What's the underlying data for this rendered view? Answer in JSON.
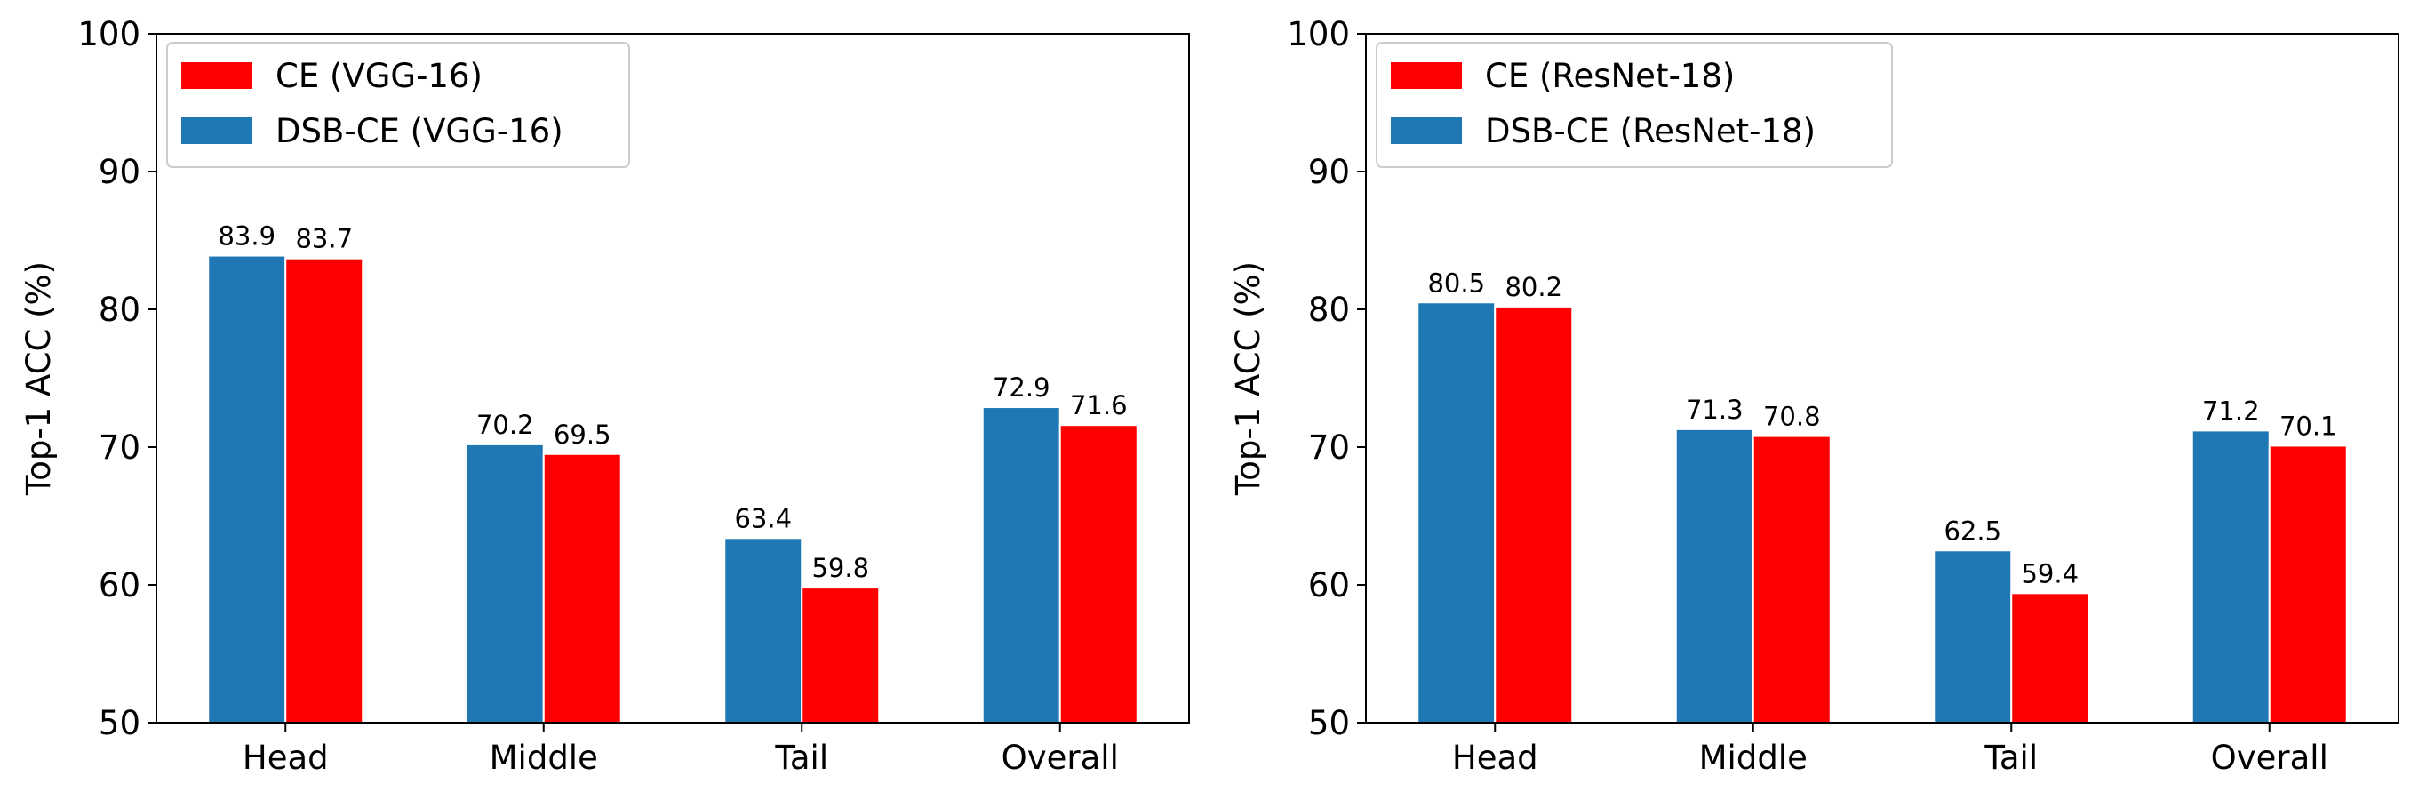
{
  "chart_data": [
    {
      "type": "bar",
      "categories": [
        "Head",
        "Middle",
        "Tail",
        "Overall"
      ],
      "ylabel": "Top-1 ACC (%)",
      "ylim": [
        50,
        100
      ],
      "yticks": [
        "50",
        "60",
        "70",
        "80",
        "90",
        "100"
      ],
      "grid": false,
      "legend_position": "top-left",
      "series": [
        {
          "name": "DSB-CE (VGG-16)",
          "color": "#1f77b4",
          "values": [
            83.9,
            70.2,
            63.4,
            72.9
          ],
          "labels": [
            "83.9",
            "70.2",
            "63.4",
            "72.9"
          ]
        },
        {
          "name": "CE (VGG-16)",
          "color": "#ff0000",
          "values": [
            83.7,
            69.5,
            59.8,
            71.6
          ],
          "labels": [
            "83.7",
            "69.5",
            "59.8",
            "71.6"
          ]
        }
      ],
      "legend_order": [
        1,
        0
      ]
    },
    {
      "type": "bar",
      "categories": [
        "Head",
        "Middle",
        "Tail",
        "Overall"
      ],
      "ylabel": "Top-1 ACC (%)",
      "ylim": [
        50,
        100
      ],
      "yticks": [
        "50",
        "60",
        "70",
        "80",
        "90",
        "100"
      ],
      "grid": false,
      "legend_position": "top-left",
      "series": [
        {
          "name": "DSB-CE (ResNet-18)",
          "color": "#1f77b4",
          "values": [
            80.5,
            71.3,
            62.5,
            71.2
          ],
          "labels": [
            "80.5",
            "71.3",
            "62.5",
            "71.2"
          ]
        },
        {
          "name": "CE (ResNet-18)",
          "color": "#ff0000",
          "values": [
            80.2,
            70.8,
            59.4,
            70.1
          ],
          "labels": [
            "80.2",
            "70.8",
            "59.4",
            "70.1"
          ]
        }
      ],
      "legend_order": [
        1,
        0
      ]
    }
  ]
}
